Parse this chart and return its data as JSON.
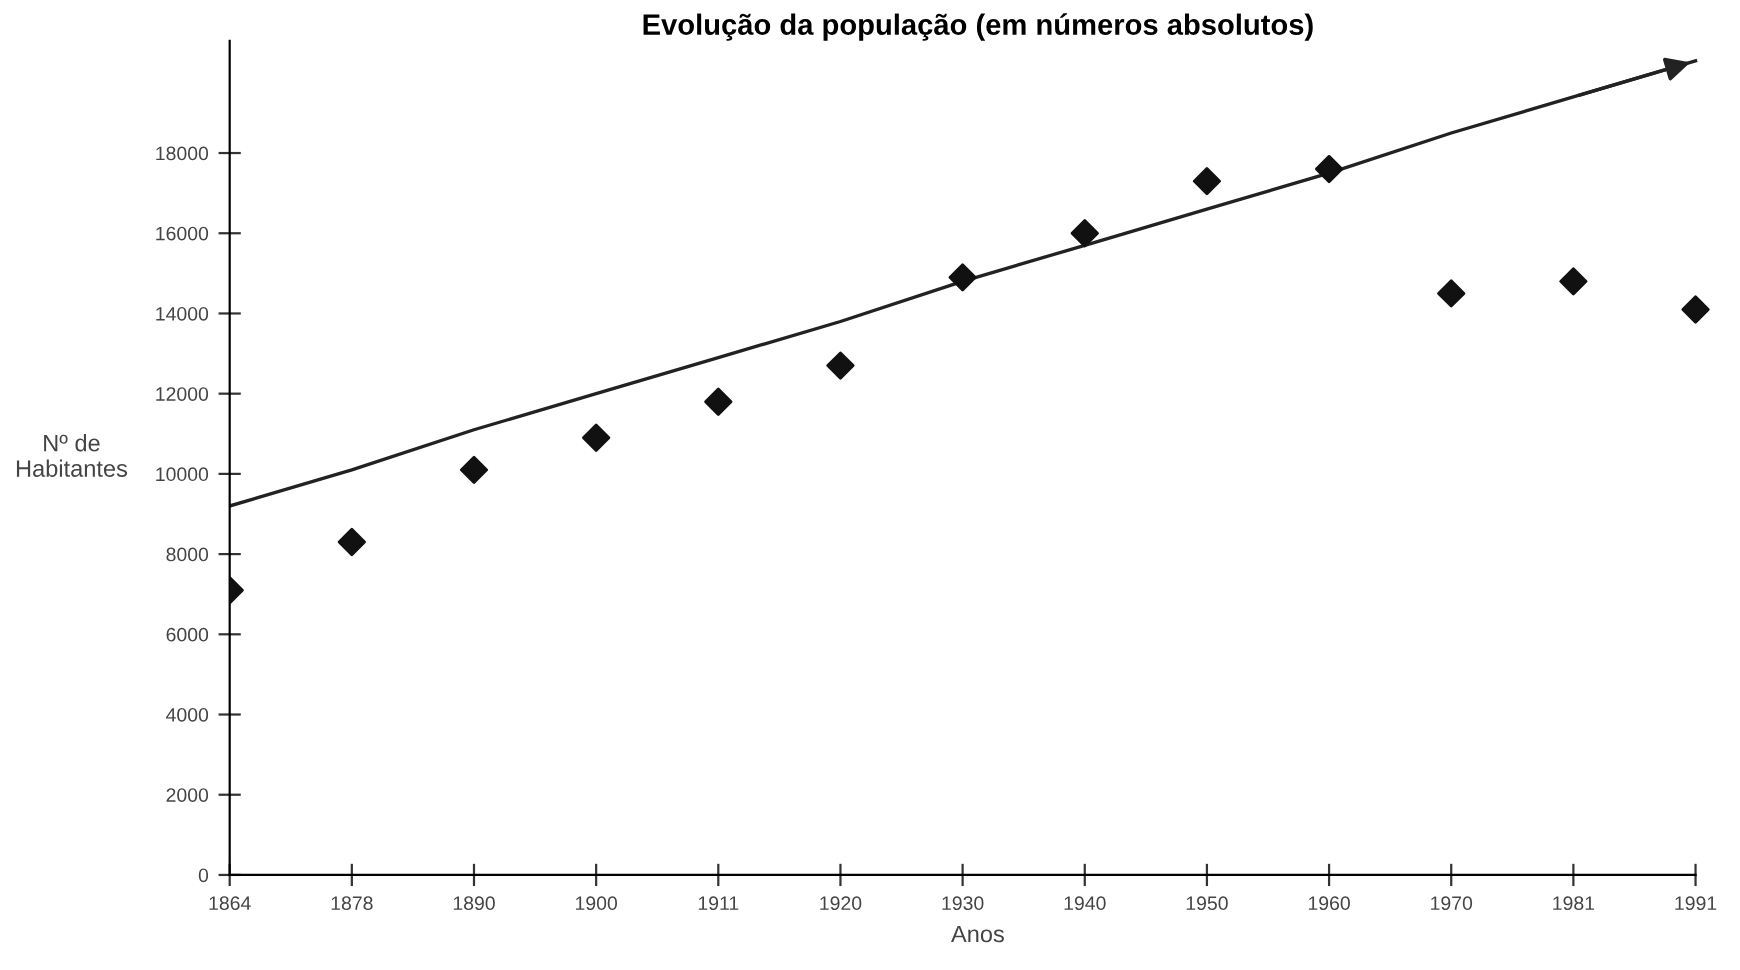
{
  "chart_data": {
    "type": "scatter",
    "title": "Evolução da população (em números absolutos)",
    "xlabel": "Anos",
    "ylabel": "Nº de\nHabitantes",
    "categories": [
      "1864",
      "1878",
      "1890",
      "1900",
      "1911",
      "1920",
      "1930",
      "1940",
      "1950",
      "1960",
      "1970",
      "1981",
      "1991"
    ],
    "series": [
      {
        "color": "#111111",
        "marker": "diamond",
        "values": [
          7100,
          8300,
          10100,
          10900,
          11800,
          12700,
          14900,
          16000,
          17300,
          17600,
          14500,
          14800,
          14100
        ]
      },
      {
        "type": "line",
        "color": "#222222",
        "marker": "none",
        "line_style": "solid",
        "values": [
          9200,
          10100,
          11100,
          12000,
          12900,
          13800,
          14800,
          15700,
          16600,
          17500,
          18500,
          19400,
          20300
        ]
      }
    ],
    "ylim": [
      0,
      20800
    ],
    "yticks": [
      0,
      2000,
      4000,
      6000,
      8000,
      10000,
      12000,
      14000,
      16000,
      18000
    ],
    "grid": false,
    "legend": false
  }
}
